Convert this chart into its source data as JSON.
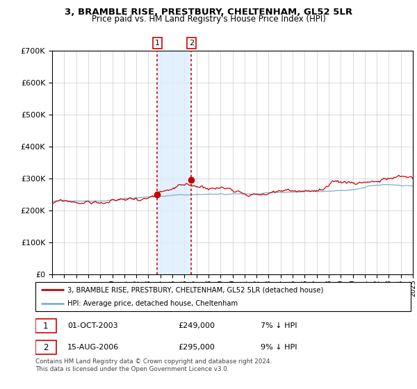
{
  "title": "3, BRAMBLE RISE, PRESTBURY, CHELTENHAM, GL52 5LR",
  "subtitle": "Price paid vs. HM Land Registry's House Price Index (HPI)",
  "legend_line1": "3, BRAMBLE RISE, PRESTBURY, CHELTENHAM, GL52 5LR (detached house)",
  "legend_line2": "HPI: Average price, detached house, Cheltenham",
  "transaction1_date": "01-OCT-2003",
  "transaction1_price": "£249,000",
  "transaction1_hpi": "7% ↓ HPI",
  "transaction2_date": "15-AUG-2006",
  "transaction2_price": "£295,000",
  "transaction2_hpi": "9% ↓ HPI",
  "footer": "Contains HM Land Registry data © Crown copyright and database right 2024.\nThis data is licensed under the Open Government Licence v3.0.",
  "hpi_color": "#7aafd4",
  "price_color": "#cc0000",
  "vline_color": "#cc0000",
  "shading_color": "#ddeeff",
  "marker_color": "#cc0000",
  "ylim_min": 0,
  "ylim_max": 700000,
  "transaction1_year": 2003.75,
  "transaction1_value": 249000,
  "transaction2_year": 2006.583,
  "transaction2_value": 295000,
  "start_year": 1995,
  "end_year": 2025
}
